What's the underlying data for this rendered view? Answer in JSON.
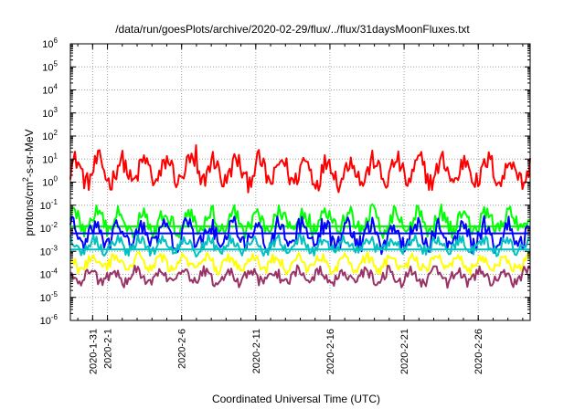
{
  "chart_data": {
    "type": "line",
    "title": "/data/run/goesPlots/archive/2020-02-29/flux/../flux/31daysMoonFluxes.txt",
    "xlabel": "Coordinated Universal Time (UTC)",
    "ylabel": {
      "prefix": "protons/cm",
      "sup": "2",
      "suffix": "-s-sr-MeV"
    },
    "yscale": "log",
    "ylim": [
      1e-06,
      1000000.0
    ],
    "y_ticks": [
      {
        "base": "10",
        "exp": "-6"
      },
      {
        "base": "10",
        "exp": "-5"
      },
      {
        "base": "10",
        "exp": "-4"
      },
      {
        "base": "10",
        "exp": "-3"
      },
      {
        "base": "10",
        "exp": "-2"
      },
      {
        "base": "10",
        "exp": "-1"
      },
      {
        "base": "10",
        "exp": "0"
      },
      {
        "base": "10",
        "exp": "1"
      },
      {
        "base": "10",
        "exp": "2"
      },
      {
        "base": "10",
        "exp": "3"
      },
      {
        "base": "10",
        "exp": "4"
      },
      {
        "base": "10",
        "exp": "5"
      },
      {
        "base": "10",
        "exp": "6"
      }
    ],
    "xlim": [
      "2020-01-29T12:00",
      "2020-02-29T12:00"
    ],
    "x_ticks": [
      "2020-1-31",
      "2020-2-1",
      "2020-2-6",
      "2020-2-11",
      "2020-2-16",
      "2020-2-21",
      "2020-2-26"
    ],
    "x_tick_values": [
      "2020-01-31",
      "2020-02-01",
      "2020-02-06",
      "2020-02-11",
      "2020-02-16",
      "2020-02-21",
      "2020-02-26"
    ],
    "grid": true,
    "legend": "none",
    "series": [
      {
        "color": "#ff0000",
        "base": 3,
        "spread": 0.55,
        "decades_min": -1.0,
        "decades_max": 1.7,
        "spike_points": [
          {
            "x": "2020-02-07",
            "y": 40
          }
        ]
      },
      {
        "color": "#00ff00",
        "base": 0.02,
        "spread": 0.45,
        "baseline": 0.012
      },
      {
        "color": "#0000ff",
        "base": 0.005,
        "spread": 0.5,
        "baseline": 0.006
      },
      {
        "color": "#00c0c0",
        "base": 0.0018,
        "spread": 0.3,
        "baseline": 0.0012
      },
      {
        "color": "#ffff00",
        "base": 0.0003,
        "spread": 0.3
      },
      {
        "color": "#993366",
        "base": 8e-05,
        "spread": 0.3
      }
    ]
  }
}
